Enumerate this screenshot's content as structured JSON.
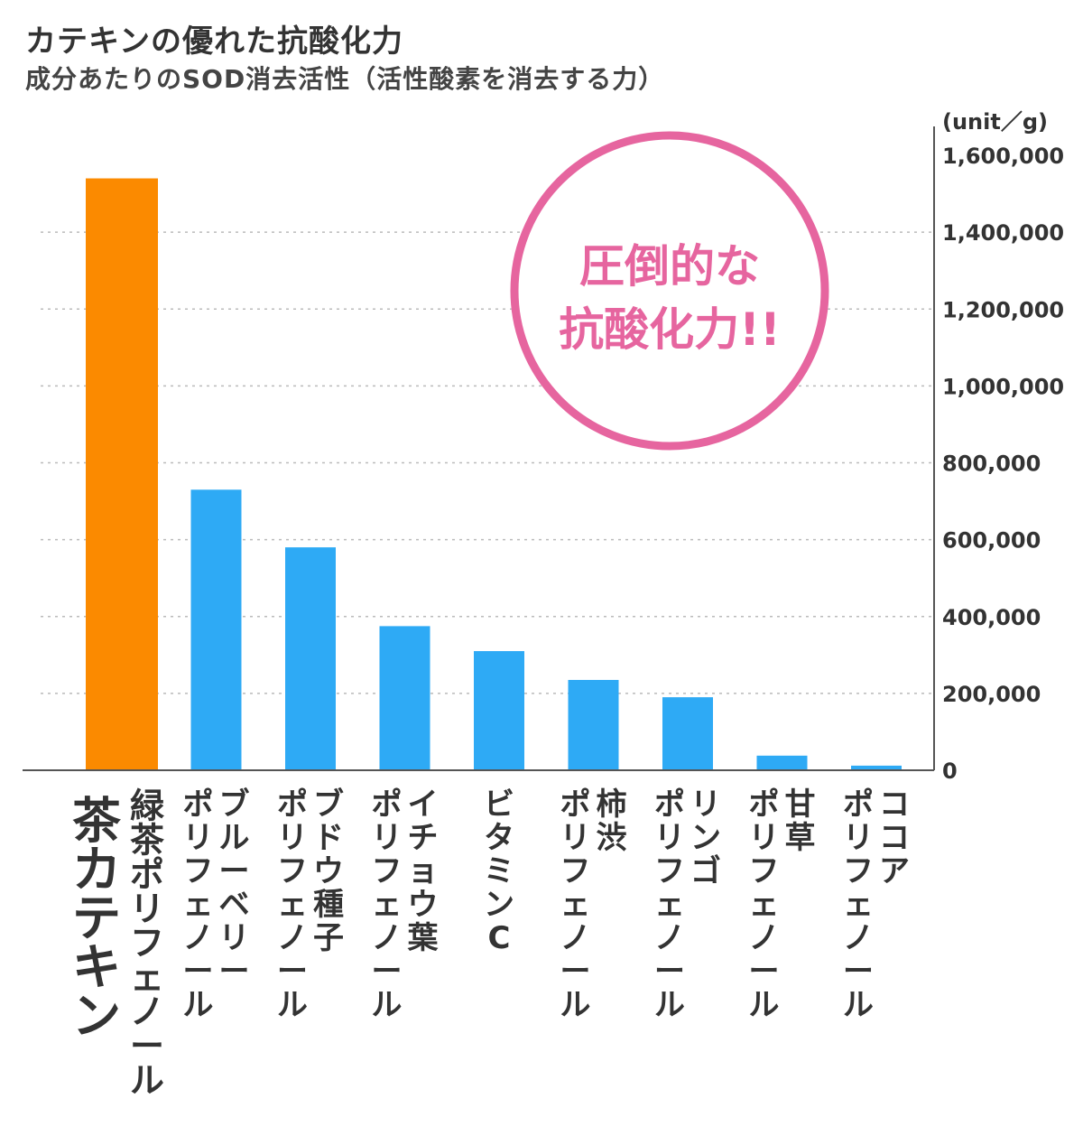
{
  "title": "カテキンの優れた抗酸化力",
  "subtitle": "成分あたりのSOD消去活性（活性酸素を消去する力）",
  "badge": {
    "line1": "圧倒的な",
    "line2": "抗酸化力!!"
  },
  "colors": {
    "highlight": "#fb8a00",
    "bar": "#2eaaf5",
    "badge": "#e6659f",
    "grid": "#bbbbbb",
    "axis": "#555555"
  },
  "chart_data": {
    "type": "bar",
    "title": "カテキンの優れた抗酸化力",
    "subtitle": "成分あたりのSOD消去活性（活性酸素を消去する力）",
    "unit": "(unit／g)",
    "y_axis_position": "right",
    "ylim": [
      0,
      1600000
    ],
    "y_ticks": [
      "0",
      "200,000",
      "400,000",
      "600,000",
      "800,000",
      "1,000,000",
      "1,200,000",
      "1,400,000",
      "1,600,000"
    ],
    "grid": "dotted horizontal",
    "categories": [
      {
        "lines": [
          "茶カテキン",
          "緑茶ポリフェノール"
        ],
        "highlight": true
      },
      {
        "lines": [
          "ブルーベリー",
          "ポリフェノール"
        ]
      },
      {
        "lines": [
          "ブドウ種子",
          "ポリフェノール"
        ]
      },
      {
        "lines": [
          "イチョウ葉",
          "ポリフェノール"
        ]
      },
      {
        "lines": [
          "ビタミンC"
        ]
      },
      {
        "lines": [
          "柿渋",
          "ポリフェノール"
        ]
      },
      {
        "lines": [
          "リンゴ",
          "ポリフェノール"
        ]
      },
      {
        "lines": [
          "甘草",
          "ポリフェノール"
        ]
      },
      {
        "lines": [
          "ココア",
          "ポリフェノール"
        ]
      }
    ],
    "values": [
      1540000,
      730000,
      580000,
      375000,
      310000,
      235000,
      190000,
      38000,
      12000
    ]
  }
}
